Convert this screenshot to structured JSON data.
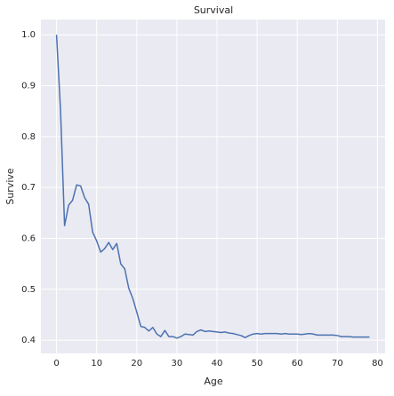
{
  "chart_data": {
    "type": "line",
    "title": "Survival",
    "x_label": "Age",
    "y_label": "Survive",
    "x": [
      0,
      1,
      2,
      3,
      4,
      5,
      6,
      7,
      8,
      9,
      10,
      11,
      12,
      13,
      14,
      15,
      16,
      17,
      18,
      19,
      20,
      21,
      22,
      23,
      24,
      25,
      26,
      27,
      28,
      29,
      30,
      31,
      32,
      33,
      34,
      35,
      36,
      37,
      38,
      39,
      40,
      41,
      42,
      43,
      44,
      45,
      46,
      47,
      48,
      49,
      50,
      51,
      52,
      53,
      54,
      55,
      56,
      57,
      58,
      59,
      60,
      61,
      62,
      63,
      64,
      65,
      66,
      67,
      68,
      69,
      70,
      71,
      72,
      73,
      74,
      75,
      76,
      77,
      78
    ],
    "series": [
      {
        "color": "#4c72b0",
        "values": [
          1.0,
          0.85,
          0.625,
          0.665,
          0.675,
          0.705,
          0.703,
          0.68,
          0.667,
          0.612,
          0.595,
          0.573,
          0.58,
          0.592,
          0.578,
          0.59,
          0.55,
          0.54,
          0.502,
          0.482,
          0.455,
          0.427,
          0.425,
          0.418,
          0.425,
          0.412,
          0.407,
          0.419,
          0.407,
          0.407,
          0.404,
          0.407,
          0.412,
          0.411,
          0.41,
          0.417,
          0.42,
          0.417,
          0.418,
          0.417,
          0.416,
          0.415,
          0.416,
          0.414,
          0.413,
          0.411,
          0.409,
          0.405,
          0.409,
          0.412,
          0.413,
          0.412,
          0.413,
          0.413,
          0.413,
          0.413,
          0.412,
          0.413,
          0.412,
          0.412,
          0.412,
          0.411,
          0.412,
          0.413,
          0.412,
          0.41,
          0.41,
          0.41,
          0.41,
          0.41,
          0.409,
          0.407,
          0.407,
          0.407,
          0.406,
          0.406,
          0.406,
          0.406,
          0.406
        ]
      }
    ],
    "xlim": [
      -3.9,
      81.9
    ],
    "ylim": [
      0.374,
      1.03
    ],
    "xticks": [
      0,
      10,
      20,
      30,
      40,
      50,
      60,
      70,
      80
    ],
    "yticks": [
      0.4,
      0.5,
      0.6,
      0.7,
      0.8,
      0.9,
      {
        "value": 1,
        "label": "1.0"
      }
    ],
    "grid": true
  }
}
